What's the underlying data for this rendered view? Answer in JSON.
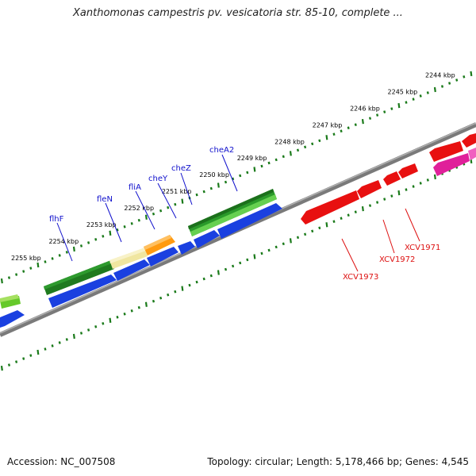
{
  "title": "Xanthomonas campestris pv. vesicatoria str. 85-10, complete ...",
  "footer": {
    "accession": "Accession: NC_007508",
    "summary": "Topology: circular; Length: 5,178,466 bp; Genes: 4,545"
  },
  "colors": {
    "backbone": "#808080",
    "tick": "#1a7a1a",
    "forward_strand": "#1a40e0",
    "reverse_red": "#f01010",
    "reverse_pink": "#e0209a",
    "gene_label_blue": "#1010cc",
    "gene_label_red": "#dd1010"
  },
  "ticks": [
    {
      "kbp": 2244,
      "label": "2244 kbp"
    },
    {
      "kbp": 2245,
      "label": "2245 kbp"
    },
    {
      "kbp": 2246,
      "label": "2246 kbp"
    },
    {
      "kbp": 2247,
      "label": "2247 kbp"
    },
    {
      "kbp": 2248,
      "label": "2248 kbp"
    },
    {
      "kbp": 2249,
      "label": "2249 kbp"
    },
    {
      "kbp": 2250,
      "label": "2250 kbp"
    },
    {
      "kbp": 2251,
      "label": "2251 kbp"
    },
    {
      "kbp": 2252,
      "label": "2252 kbp"
    },
    {
      "kbp": 2253,
      "label": "2253 kbp"
    },
    {
      "kbp": 2254,
      "label": "2254 kbp"
    },
    {
      "kbp": 2255,
      "label": "2255 kbp"
    }
  ],
  "gene_labels": [
    {
      "text": "cheA2",
      "color": "blue"
    },
    {
      "text": "cheZ",
      "color": "blue"
    },
    {
      "text": "cheY",
      "color": "blue"
    },
    {
      "text": "fliA",
      "color": "blue"
    },
    {
      "text": "fleN",
      "color": "blue"
    },
    {
      "text": "flhF",
      "color": "blue"
    },
    {
      "text": "XCV1971",
      "color": "red"
    },
    {
      "text": "XCV1972",
      "color": "red"
    },
    {
      "text": "XCV1973",
      "color": "red"
    }
  ]
}
